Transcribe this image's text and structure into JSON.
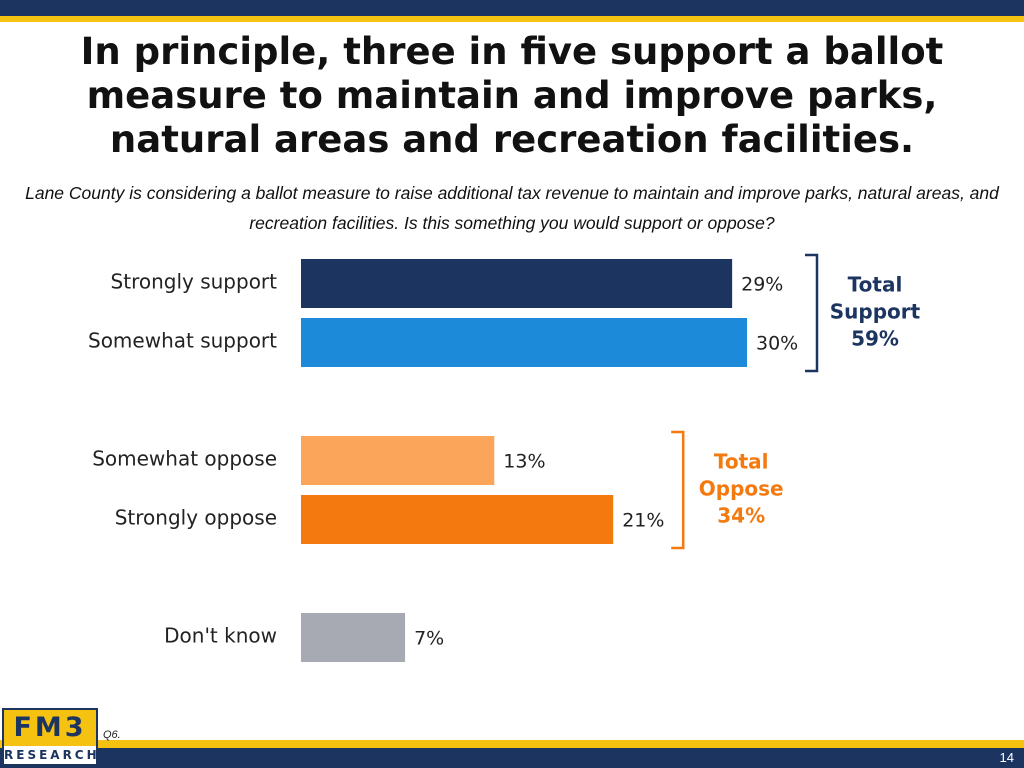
{
  "slide": {
    "title": "In principle, three in five support a ballot measure to maintain and improve parks, natural areas and recreation facilities.",
    "question": "Lane County is considering a ballot measure to raise additional tax revenue to maintain and improve parks, natural areas, and recreation facilities. Is this something you would support or oppose?",
    "footnote": "Q6.",
    "page_number": "14",
    "logo": {
      "top": "FM3",
      "bottom": "RESEARCH"
    }
  },
  "colors": {
    "navy": "#1c3560",
    "gold": "#f5c211",
    "support_label": "#1c3560",
    "oppose_label": "#f4790f"
  },
  "chart_data": {
    "type": "bar",
    "orientation": "horizontal",
    "categories": [
      "Strongly support",
      "Somewhat support",
      "Somewhat oppose",
      "Strongly oppose",
      "Don't know"
    ],
    "values": [
      29,
      30,
      13,
      21,
      7
    ],
    "value_labels": [
      "29%",
      "30%",
      "13%",
      "21%",
      "7%"
    ],
    "colors": [
      "#1c3560",
      "#1c8ad8",
      "#fba55a",
      "#f4790f",
      "#a8aab3"
    ],
    "xlim": [
      0,
      30
    ],
    "grid": false,
    "groups": [
      {
        "line1": "Total",
        "line2": "Support",
        "line3": "59%",
        "start": 0,
        "end": 1,
        "color": "#1c3560"
      },
      {
        "line1": "Total",
        "line2": "Oppose",
        "line3": "34%",
        "start": 2,
        "end": 3,
        "color": "#f4790f"
      }
    ]
  }
}
